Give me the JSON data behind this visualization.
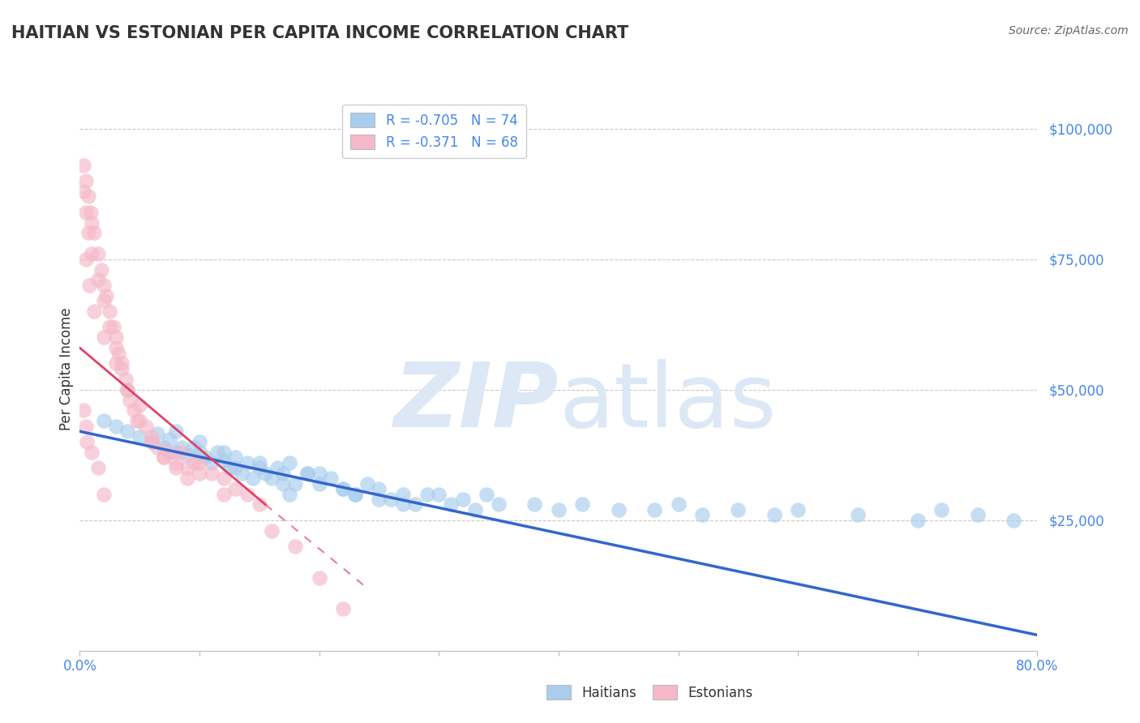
{
  "title": "HAITIAN VS ESTONIAN PER CAPITA INCOME CORRELATION CHART",
  "source": "Source: ZipAtlas.com",
  "ylabel": "Per Capita Income",
  "xlim": [
    0.0,
    0.8
  ],
  "ylim": [
    0,
    108000
  ],
  "yticks": [
    0,
    25000,
    50000,
    75000,
    100000
  ],
  "ytick_labels": [
    "",
    "$25,000",
    "$50,000",
    "$75,000",
    "$100,000"
  ],
  "xticks": [
    0.0,
    0.1,
    0.2,
    0.3,
    0.4,
    0.5,
    0.6,
    0.7,
    0.8
  ],
  "xtick_labels": [
    "0.0%",
    "",
    "",
    "",
    "",
    "",
    "",
    "",
    "80.0%"
  ],
  "blue_R": "-0.705",
  "blue_N": "74",
  "pink_R": "-0.371",
  "pink_N": "68",
  "blue_color": "#A8CDED",
  "blue_line_color": "#3366CC",
  "pink_color": "#F5B8C8",
  "pink_line_color": "#DD4466",
  "watermark_color": "#DCE8F5",
  "background_color": "#FFFFFF",
  "grid_color": "#BBBBBB",
  "title_color": "#333333",
  "source_color": "#666666",
  "ytick_color": "#4488EE",
  "xtick_color": "#4488EE",
  "legend_text_color": "#4488EE",
  "blue_line_x0": 0.0,
  "blue_line_x1": 0.8,
  "blue_line_y0": 42000,
  "blue_line_y1": 3000,
  "pink_line_solid_x0": 0.0,
  "pink_line_solid_x1": 0.155,
  "pink_line_solid_y0": 58000,
  "pink_line_solid_y1": 28000,
  "pink_line_dash_x0": 0.155,
  "pink_line_dash_x1": 0.24,
  "pink_line_dash_y0": 28000,
  "pink_line_dash_y1": 12000,
  "blue_scatter_x": [
    0.02,
    0.03,
    0.04,
    0.05,
    0.06,
    0.065,
    0.07,
    0.075,
    0.08,
    0.085,
    0.09,
    0.095,
    0.1,
    0.105,
    0.11,
    0.115,
    0.12,
    0.125,
    0.13,
    0.135,
    0.14,
    0.145,
    0.15,
    0.155,
    0.16,
    0.165,
    0.17,
    0.175,
    0.18,
    0.19,
    0.2,
    0.21,
    0.22,
    0.23,
    0.24,
    0.25,
    0.26,
    0.27,
    0.28,
    0.29,
    0.3,
    0.31,
    0.32,
    0.33,
    0.34,
    0.35,
    0.38,
    0.4,
    0.42,
    0.45,
    0.48,
    0.5,
    0.52,
    0.55,
    0.58,
    0.6,
    0.65,
    0.7,
    0.72,
    0.75,
    0.78,
    0.15,
    0.2,
    0.25,
    0.12,
    0.17,
    0.08,
    0.1,
    0.13,
    0.175,
    0.19,
    0.22,
    0.23,
    0.27
  ],
  "blue_scatter_y": [
    44000,
    43000,
    42000,
    41000,
    40000,
    41500,
    39000,
    40500,
    38000,
    39000,
    37500,
    39000,
    40000,
    37000,
    36000,
    38000,
    36500,
    35000,
    37000,
    34000,
    36000,
    33000,
    35000,
    34000,
    33000,
    35000,
    34000,
    36000,
    32000,
    34000,
    32000,
    33000,
    31000,
    30000,
    32000,
    31000,
    29000,
    30000,
    28000,
    30000,
    30000,
    28000,
    29000,
    27000,
    30000,
    28000,
    28000,
    27000,
    28000,
    27000,
    27000,
    28000,
    26000,
    27000,
    26000,
    27000,
    26000,
    25000,
    27000,
    26000,
    25000,
    36000,
    34000,
    29000,
    38000,
    32000,
    42000,
    38000,
    35000,
    30000,
    34000,
    31000,
    30000,
    28000
  ],
  "pink_scatter_x": [
    0.003,
    0.005,
    0.007,
    0.009,
    0.01,
    0.012,
    0.015,
    0.018,
    0.02,
    0.022,
    0.025,
    0.028,
    0.03,
    0.032,
    0.035,
    0.038,
    0.04,
    0.042,
    0.045,
    0.048,
    0.05,
    0.055,
    0.06,
    0.065,
    0.07,
    0.075,
    0.08,
    0.085,
    0.09,
    0.095,
    0.1,
    0.11,
    0.12,
    0.13,
    0.14,
    0.15,
    0.16,
    0.18,
    0.2,
    0.22,
    0.003,
    0.005,
    0.007,
    0.01,
    0.015,
    0.02,
    0.025,
    0.03,
    0.035,
    0.04,
    0.05,
    0.06,
    0.07,
    0.08,
    0.09,
    0.1,
    0.12,
    0.005,
    0.008,
    0.012,
    0.02,
    0.03,
    0.003,
    0.005,
    0.006,
    0.01,
    0.015,
    0.02
  ],
  "pink_scatter_y": [
    93000,
    90000,
    87000,
    84000,
    82000,
    80000,
    76000,
    73000,
    70000,
    68000,
    65000,
    62000,
    60000,
    57000,
    55000,
    52000,
    50000,
    48000,
    46000,
    44000,
    47000,
    43000,
    41000,
    39000,
    37000,
    38000,
    36000,
    38000,
    35000,
    36000,
    36000,
    34000,
    33000,
    31000,
    30000,
    28000,
    23000,
    20000,
    14000,
    8000,
    88000,
    84000,
    80000,
    76000,
    71000,
    67000,
    62000,
    58000,
    54000,
    50000,
    44000,
    40000,
    37000,
    35000,
    33000,
    34000,
    30000,
    75000,
    70000,
    65000,
    60000,
    55000,
    46000,
    43000,
    40000,
    38000,
    35000,
    30000
  ]
}
